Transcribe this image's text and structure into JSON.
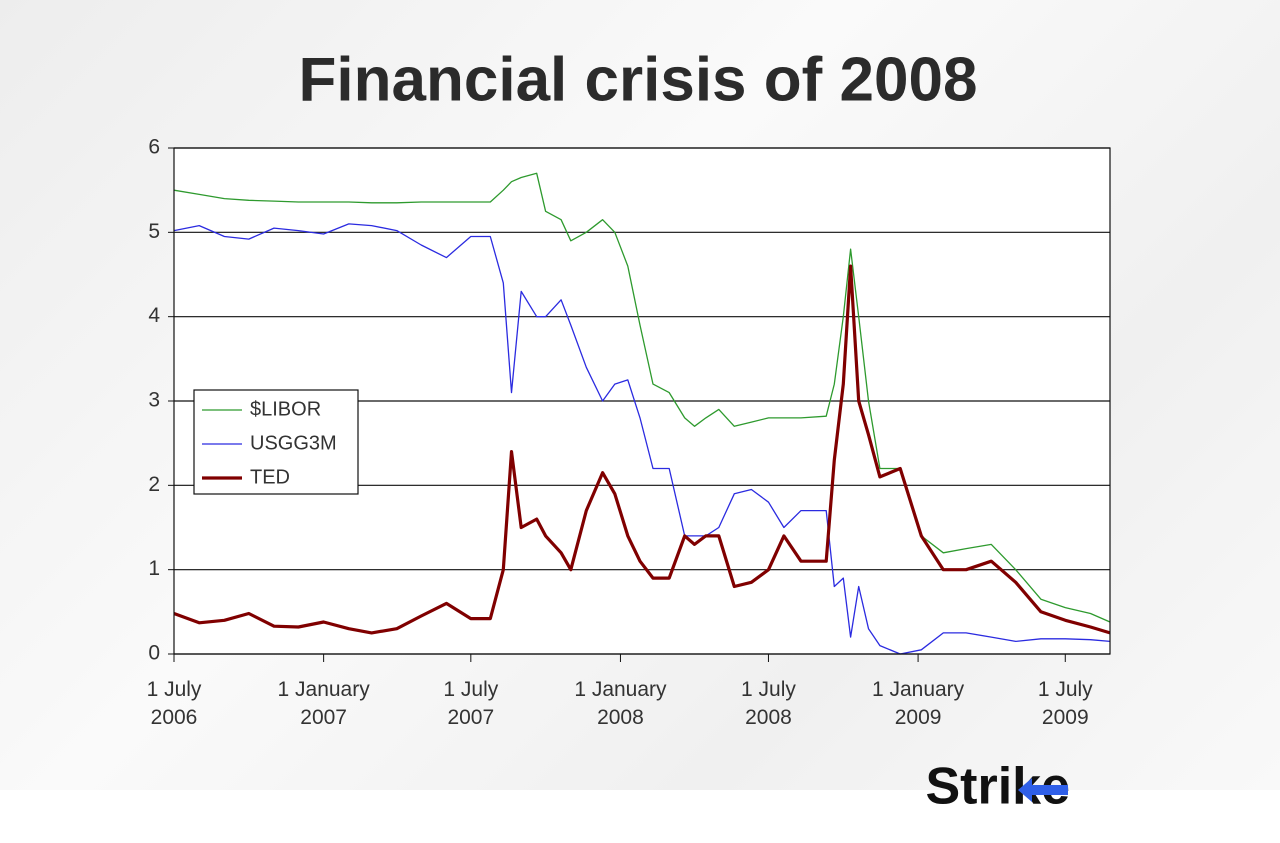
{
  "chart_data": {
    "type": "line",
    "title": "Financial crisis of 2008",
    "logo": "Strike",
    "x": [
      "2006-07-01",
      "2006-08-01",
      "2006-09-01",
      "2006-10-01",
      "2006-11-01",
      "2006-12-01",
      "2007-01-01",
      "2007-02-01",
      "2007-03-01",
      "2007-04-01",
      "2007-05-01",
      "2007-06-01",
      "2007-07-01",
      "2007-07-25",
      "2007-08-10",
      "2007-08-20",
      "2007-09-01",
      "2007-09-20",
      "2007-10-01",
      "2007-10-20",
      "2007-11-01",
      "2007-11-20",
      "2007-12-10",
      "2007-12-25",
      "2008-01-10",
      "2008-01-25",
      "2008-02-10",
      "2008-03-01",
      "2008-03-20",
      "2008-04-01",
      "2008-04-15",
      "2008-05-01",
      "2008-05-20",
      "2008-06-10",
      "2008-07-01",
      "2008-07-20",
      "2008-08-10",
      "2008-09-10",
      "2008-09-20",
      "2008-10-01",
      "2008-10-10",
      "2008-10-20",
      "2008-11-01",
      "2008-11-15",
      "2008-12-10",
      "2009-01-05",
      "2009-02-01",
      "2009-03-01",
      "2009-04-01",
      "2009-05-01",
      "2009-06-01",
      "2009-07-01",
      "2009-08-01",
      "2009-08-25"
    ],
    "series": [
      {
        "name": "$LIBOR",
        "color": "#2e9a2e",
        "width": 1.3,
        "values": [
          5.5,
          5.45,
          5.4,
          5.38,
          5.37,
          5.36,
          5.36,
          5.36,
          5.35,
          5.35,
          5.36,
          5.36,
          5.36,
          5.36,
          5.5,
          5.6,
          5.65,
          5.7,
          5.25,
          5.15,
          4.9,
          5.0,
          5.15,
          5.0,
          4.6,
          3.9,
          3.2,
          3.1,
          2.8,
          2.7,
          2.8,
          2.9,
          2.7,
          2.75,
          2.8,
          2.8,
          2.8,
          2.82,
          3.2,
          4.0,
          4.8,
          4.0,
          3.0,
          2.2,
          2.2,
          1.4,
          1.2,
          1.25,
          1.3,
          1.0,
          0.65,
          0.55,
          0.48,
          0.38
        ]
      },
      {
        "name": "USGG3M",
        "color": "#2b2be0",
        "width": 1.3,
        "values": [
          5.02,
          5.08,
          4.95,
          4.92,
          5.05,
          5.02,
          4.98,
          5.1,
          5.08,
          5.02,
          4.85,
          4.7,
          4.95,
          4.95,
          4.4,
          3.1,
          4.3,
          4.0,
          4.0,
          4.2,
          3.9,
          3.4,
          3.0,
          3.2,
          3.25,
          2.8,
          2.2,
          2.2,
          1.4,
          1.4,
          1.4,
          1.5,
          1.9,
          1.95,
          1.8,
          1.5,
          1.7,
          1.7,
          0.8,
          0.9,
          0.2,
          0.8,
          0.3,
          0.1,
          0.0,
          0.05,
          0.25,
          0.25,
          0.2,
          0.15,
          0.18,
          0.18,
          0.17,
          0.15
        ]
      },
      {
        "name": "TED",
        "color": "#800000",
        "width": 3.2,
        "values": [
          0.48,
          0.37,
          0.4,
          0.48,
          0.33,
          0.32,
          0.38,
          0.3,
          0.25,
          0.3,
          0.45,
          0.6,
          0.42,
          0.42,
          1.0,
          2.4,
          1.5,
          1.6,
          1.4,
          1.2,
          1.0,
          1.7,
          2.15,
          1.9,
          1.4,
          1.1,
          0.9,
          0.9,
          1.4,
          1.3,
          1.4,
          1.4,
          0.8,
          0.85,
          1.0,
          1.4,
          1.1,
          1.1,
          2.3,
          3.2,
          4.6,
          3.0,
          2.6,
          2.1,
          2.2,
          1.4,
          1.0,
          1.0,
          1.1,
          0.85,
          0.5,
          0.4,
          0.32,
          0.25
        ]
      }
    ],
    "xlim": [
      "2006-07-01",
      "2009-08-25"
    ],
    "xticks": [
      {
        "value": "2006-07-01",
        "label": "1 July 2006"
      },
      {
        "value": "2007-01-01",
        "label": "1 January 2007"
      },
      {
        "value": "2007-07-01",
        "label": "1 July 2007"
      },
      {
        "value": "2008-01-01",
        "label": "1 January 2008"
      },
      {
        "value": "2008-07-01",
        "label": "1 July 2008"
      },
      {
        "value": "2009-01-01",
        "label": "1 January 2009"
      },
      {
        "value": "2009-07-01",
        "label": "1 July 2009"
      }
    ],
    "ylim": [
      0,
      6
    ],
    "yticks": [
      0,
      1,
      2,
      3,
      4,
      5,
      6
    ],
    "grid": true,
    "legend": "left"
  }
}
